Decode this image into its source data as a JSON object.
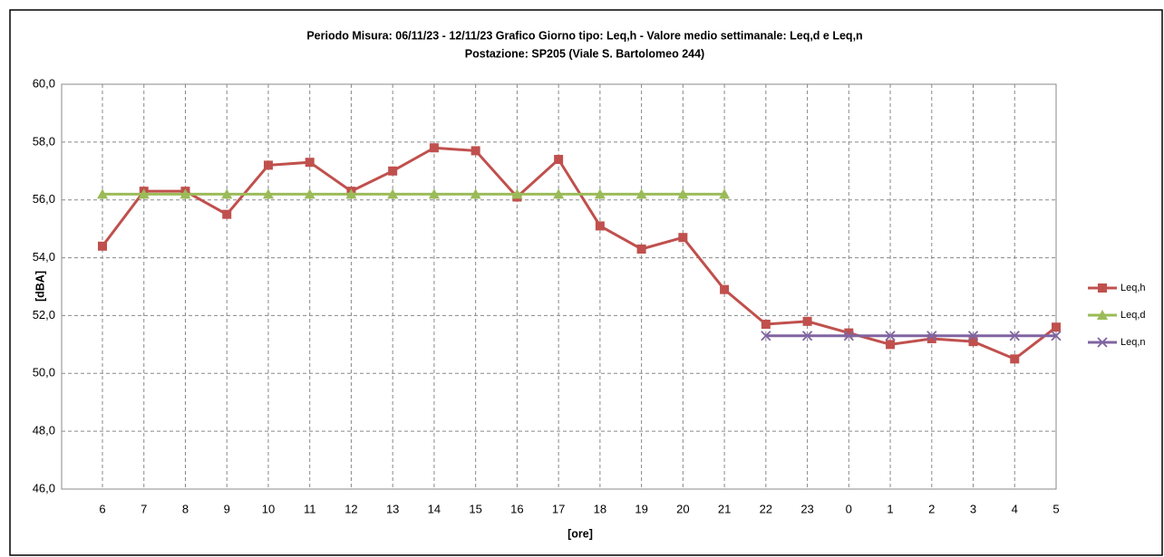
{
  "chart_data": {
    "type": "line",
    "title": "Periodo Misura:  06/11/23 - 12/11/23  Grafico Giorno tipo:  Leq,h -  Valore medio settimanale: Leq,d e Leq,n",
    "subtitle": "Postazione: SP205 (Viale S. Bartolomeo 244)",
    "x_label": "[ore]",
    "y_label": "[dBA]",
    "categories": [
      "6",
      "7",
      "8",
      "9",
      "10",
      "11",
      "12",
      "13",
      "14",
      "15",
      "16",
      "17",
      "18",
      "19",
      "20",
      "21",
      "22",
      "23",
      "0",
      "1",
      "2",
      "3",
      "4",
      "5"
    ],
    "series": [
      {
        "name": "Leq,h",
        "color": "#c0504d",
        "marker": "square",
        "values": [
          54.4,
          56.3,
          56.3,
          55.5,
          57.2,
          57.3,
          56.3,
          57.0,
          57.8,
          57.7,
          56.1,
          57.4,
          55.1,
          54.3,
          54.7,
          52.9,
          51.7,
          51.8,
          51.4,
          51.0,
          51.2,
          51.1,
          50.5,
          51.6
        ]
      },
      {
        "name": "Leq,d",
        "color": "#9bbb59",
        "marker": "triangle",
        "values": [
          56.2,
          56.2,
          56.2,
          56.2,
          56.2,
          56.2,
          56.2,
          56.2,
          56.2,
          56.2,
          56.2,
          56.2,
          56.2,
          56.2,
          56.2,
          56.2,
          null,
          null,
          null,
          null,
          null,
          null,
          null,
          null
        ]
      },
      {
        "name": "Leq,n",
        "color": "#8064a2",
        "marker": "cross",
        "values": [
          null,
          null,
          null,
          null,
          null,
          null,
          null,
          null,
          null,
          null,
          null,
          null,
          null,
          null,
          null,
          null,
          51.3,
          51.3,
          51.3,
          51.3,
          51.3,
          51.3,
          51.3,
          51.3
        ]
      }
    ],
    "ylim": [
      46,
      60
    ],
    "yticks": [
      {
        "value": 46,
        "label": "46,0"
      },
      {
        "value": 48,
        "label": "48,0"
      },
      {
        "value": 50,
        "label": "50,0"
      },
      {
        "value": 52,
        "label": "52,0"
      },
      {
        "value": 54,
        "label": "54,0"
      },
      {
        "value": 56,
        "label": "56,0"
      },
      {
        "value": 58,
        "label": "58,0"
      },
      {
        "value": 60,
        "label": "60,0"
      }
    ],
    "grid": true,
    "legend": "right"
  }
}
